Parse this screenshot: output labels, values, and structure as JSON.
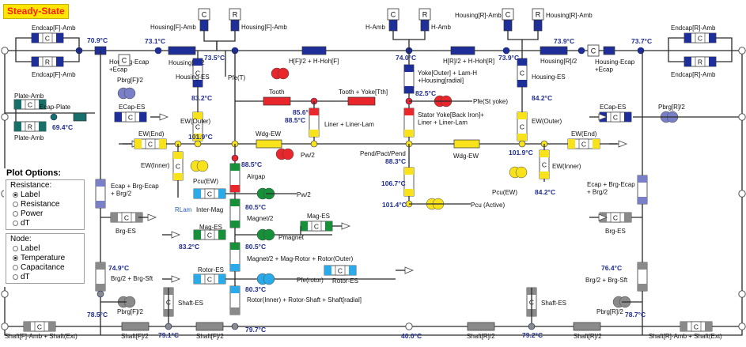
{
  "title": "Steady-State",
  "plot_options": {
    "title": "Plot Options:",
    "resistance": {
      "heading": "Resistance:",
      "items": [
        "Label",
        "Resistance",
        "Power",
        "dT"
      ],
      "selected": 0
    },
    "node": {
      "heading": "Node:",
      "items": [
        "Label",
        "Temperature",
        "Capacitance",
        "dT"
      ],
      "selected": 1
    }
  },
  "symbols": {
    "capacitor": "C",
    "resistor": "R"
  },
  "colors": {
    "line": "#2a2a2a",
    "node": "#1e2f9a",
    "temperature": "#1f2d90",
    "housing": "#1e2f9a",
    "copper": "#f7e21c",
    "iron": "#e8262b",
    "magnet": "#16913a",
    "shaft": "#8a8a8a",
    "rotor": "#2aaae8",
    "bearing": "#7a80c8",
    "plate": "#17706a"
  },
  "temperatures": {
    "endcap_f": "70.9°C",
    "housing_f_node": "73.1°C",
    "housing_f_mid": "73.5°C",
    "yoke_top": "74.0°C",
    "housing_r_node": "73.9°C",
    "endcap_r": "73.7°C",
    "plate": "69.4°C",
    "ew_outer_f": "83.2°C",
    "tooth": "85.6°C",
    "yoke": "82.5°C",
    "ew_outer_r": "84.2°C",
    "liner": "88.5°C",
    "ew_f": "101.9°C",
    "ew_r": "101.9°C",
    "airgap": "88.5°C",
    "pend": "88.3°C",
    "winding": "106.7°C",
    "ew_inner_r": "84.2°C",
    "active": "101.4°C",
    "magnet": "80.5°C",
    "mag_es": "83.2°C",
    "rotor_mid": "80.5°C",
    "brg_sft_f": "74.9°C",
    "brg_sft_r": "76.4°C",
    "rotor_inner": "80.3°C",
    "shaft_f_end": "78.5°C",
    "shaft_r_end": "78.7°C",
    "shaft_f_mid": "79.1°C",
    "shaft_mid": "79.7°C",
    "ambient": "40.0°C",
    "shaft_r_mid": "79.2°C"
  },
  "labels": {
    "endcap_f_amb_top": "Endcap[F]-Amb",
    "endcap_f_amb_bot": "Endcap[F]-Amb",
    "housing_ecap_f": "Housing-Ecap\n+Ecap",
    "housing_f2": "Housing[F]/2",
    "housing_f_amb_l": "Housing[F]-Amb",
    "housing_f_amb_r": "Housing[F]-Amb",
    "hf2_hohf": "H[F]/2 + H-Hoh[F]",
    "h_amb_l": "H-Amb",
    "h_amb_r": "H-Amb",
    "hr2_hohr": "H[R]/2 + H-Hoh[R]",
    "housing_r_amb_l": "Housing[R]-Amb",
    "housing_r_amb_r": "Housing[R]-Amb",
    "housing_r2": "Housing[R]/2",
    "housing_ecap_r": "Housing-Ecap\n+Ecap",
    "endcap_r_amb_top": "Endcap[R]-Amb",
    "endcap_r_amb_bot": "Endcap[R]-Amb",
    "plate_amb_top": "Plate-Amb",
    "plate_amb_bot": "Plate-Amb",
    "ecap_plate": "Ecap-Plate",
    "pbrg_f2": "Pbrg[F]/2",
    "ecap_es_f": "ECap-ES",
    "housing_es_f": "Housing-ES",
    "pfe_t": "Pfe(T)",
    "tooth": "Tooth",
    "tooth_yoke": "Tooth + Yoke[Tth]",
    "yoke_outer": "Yoke[Outer] + Lam-H\n+Housing[radial]",
    "pfe_styoke": "Pfe(St yoke)",
    "housing_es_r": "Housing-ES",
    "ecap_es_r": "ECap-ES",
    "pbrg_r2": "Pbrg[R]/2",
    "ew_outer_f": "EW(Outer)",
    "ew_outer_r": "EW(Outer)",
    "liner_lam": "Liner + Liner-Lam",
    "stator_yoke": "Stator Yoke[Back Iron]+\nLiner + Liner-Lam",
    "ew_end_f": "EW(End)",
    "ew_end_r": "EW(End)",
    "wdg_ew_f": "Wdg-EW",
    "wdg_ew_r": "Wdg-EW",
    "pend_pact": "Pend/Pact/Pend",
    "pw2_top": "Pw/2",
    "ew_inner_f": "EW(Inner)",
    "ew_inner_r": "EW(Inner)",
    "pcu_ew_f": "Pcu(EW)",
    "pcu_ew_r": "Pcu(EW)",
    "airgap": "Airgap",
    "ecap_brg_f": "Ecap + Brg-Ecap\n+ Brg/2",
    "ecap_brg_r": "Ecap + Brg-Ecap\n+ Brg/2",
    "rlam": "RLam",
    "inter_mag": "Inter-Mag",
    "pw2_bot": "Pw/2",
    "pcu_active": "Pcu (Active)",
    "magnet2": "Magnet/2",
    "mag_es_top": "Mag-ES",
    "mag_es_left": "Mag-ES",
    "pmagnet": "Pmagnet",
    "brg_es_f": "Brg-ES",
    "brg_es_r": "Brg-ES",
    "magnet_rotor": "Magnet/2 + Mag-Rotor + Rotor(Outer)",
    "rotor_es_top": "Rotor-ES",
    "rotor_es_right": "Rotor-ES",
    "pfe_rotor": "Pfe(rotor)",
    "brg_sft_f": "Brg/2 + Brg-Sft",
    "brg_sft_r": "Brg/2 + Brg-Sft",
    "rotor_inner": "Rotor(Inner) + Rotor-Shaft + Shaft[radial]",
    "shaft_es_f": "Shaft-ES",
    "shaft_es_r": "Shaft-ES",
    "pbrg_f2_bot": "Pbrg[F]/2",
    "pbrg_r2_bot": "Pbrg[R]/2",
    "shaft_f_amb": "Shaft[F]-Amb + Shaft(Ext)",
    "shaft_f2_a": "Shaft[F]/2",
    "shaft_f2_b": "Shaft[F]/2",
    "shaft_r2_a": "Shaft[R]/2",
    "shaft_r2_b": "Shaft[R]/2",
    "shaft_r_amb": "Shaft[R]-Amb + Shaft(Ext)"
  }
}
